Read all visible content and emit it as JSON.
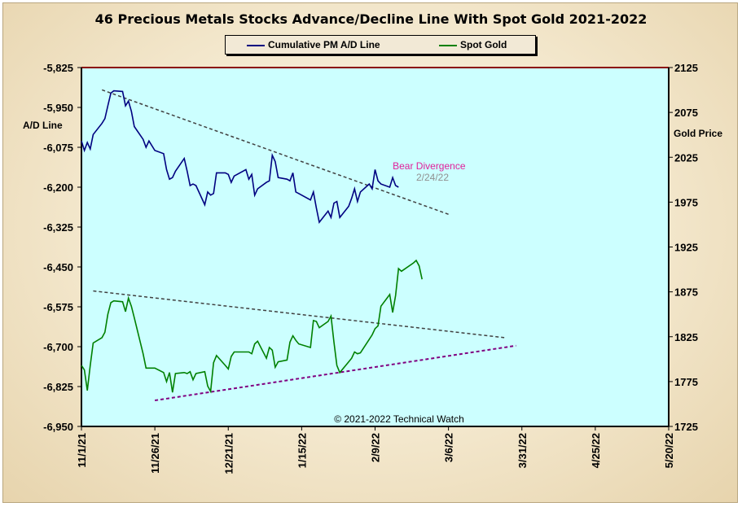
{
  "chart_data": {
    "type": "line",
    "title": "46 Precious Metals Stocks Advance/Decline Line With Spot Gold 2021-2022",
    "ylabel_left": "A/D Line",
    "ylabel_right": "Gold Price",
    "y_left_range": [
      -6950,
      -5825
    ],
    "y_right_range": [
      1725,
      2125
    ],
    "y_left_ticks": [
      "-5,825",
      "-5,950",
      "-6,075",
      "-6,200",
      "-6,325",
      "-6,450",
      "-6,575",
      "-6,700",
      "-6,825",
      "-6,950"
    ],
    "y_right_ticks": [
      "2125",
      "2075",
      "2025",
      "1975",
      "1925",
      "1875",
      "1825",
      "1775",
      "1725"
    ],
    "x_range": [
      "2021-11-01",
      "2022-05-20"
    ],
    "x_ticks": [
      "11/1/21",
      "11/26/21",
      "12/21/21",
      "1/15/22",
      "2/9/22",
      "3/6/22",
      "3/31/22",
      "4/25/22",
      "5/20/22"
    ],
    "legend_position": "top-center",
    "series": [
      {
        "name": "Cumulative PM A/D Line",
        "axis": "left",
        "color": "#000080",
        "points": [
          [
            "2021-11-01",
            -6055
          ],
          [
            "2021-11-02",
            -6085
          ],
          [
            "2021-11-03",
            -6060
          ],
          [
            "2021-11-04",
            -6080
          ],
          [
            "2021-11-05",
            -6035
          ],
          [
            "2021-11-08",
            -6000
          ],
          [
            "2021-11-09",
            -5985
          ],
          [
            "2021-11-10",
            -5945
          ],
          [
            "2021-11-11",
            -5905
          ],
          [
            "2021-11-12",
            -5898
          ],
          [
            "2021-11-15",
            -5900
          ],
          [
            "2021-11-16",
            -5945
          ],
          [
            "2021-11-17",
            -5930
          ],
          [
            "2021-11-18",
            -5962
          ],
          [
            "2021-11-19",
            -6010
          ],
          [
            "2021-11-22",
            -6050
          ],
          [
            "2021-11-23",
            -6075
          ],
          [
            "2021-11-24",
            -6055
          ],
          [
            "2021-11-26",
            -6085
          ],
          [
            "2021-11-29",
            -6095
          ],
          [
            "2021-11-30",
            -6145
          ],
          [
            "2021-12-01",
            -6175
          ],
          [
            "2021-12-02",
            -6170
          ],
          [
            "2021-12-03",
            -6150
          ],
          [
            "2021-12-06",
            -6110
          ],
          [
            "2021-12-07",
            -6150
          ],
          [
            "2021-12-08",
            -6195
          ],
          [
            "2021-12-09",
            -6190
          ],
          [
            "2021-12-10",
            -6195
          ],
          [
            "2021-12-13",
            -6255
          ],
          [
            "2021-12-14",
            -6215
          ],
          [
            "2021-12-15",
            -6225
          ],
          [
            "2021-12-16",
            -6220
          ],
          [
            "2021-12-17",
            -6155
          ],
          [
            "2021-12-20",
            -6155
          ],
          [
            "2021-12-21",
            -6160
          ],
          [
            "2021-12-22",
            -6185
          ],
          [
            "2021-12-23",
            -6165
          ],
          [
            "2021-12-27",
            -6145
          ],
          [
            "2021-12-28",
            -6175
          ],
          [
            "2021-12-29",
            -6160
          ],
          [
            "2021-12-30",
            -6225
          ],
          [
            "2021-12-31",
            -6205
          ],
          [
            "2022-01-03",
            -6185
          ],
          [
            "2022-01-04",
            -6180
          ],
          [
            "2022-01-05",
            -6100
          ],
          [
            "2022-01-06",
            -6120
          ],
          [
            "2022-01-07",
            -6170
          ],
          [
            "2022-01-10",
            -6175
          ],
          [
            "2022-01-11",
            -6180
          ],
          [
            "2022-01-12",
            -6155
          ],
          [
            "2022-01-13",
            -6215
          ],
          [
            "2022-01-14",
            -6220
          ],
          [
            "2022-01-18",
            -6240
          ],
          [
            "2022-01-19",
            -6215
          ],
          [
            "2022-01-20",
            -6265
          ],
          [
            "2022-01-21",
            -6310
          ],
          [
            "2022-01-24",
            -6275
          ],
          [
            "2022-01-25",
            -6295
          ],
          [
            "2022-01-26",
            -6250
          ],
          [
            "2022-01-27",
            -6245
          ],
          [
            "2022-01-28",
            -6295
          ],
          [
            "2022-01-31",
            -6260
          ],
          [
            "2022-02-01",
            -6235
          ],
          [
            "2022-02-02",
            -6205
          ],
          [
            "2022-02-03",
            -6245
          ],
          [
            "2022-02-04",
            -6215
          ],
          [
            "2022-02-07",
            -6190
          ],
          [
            "2022-02-08",
            -6205
          ],
          [
            "2022-02-09",
            -6145
          ],
          [
            "2022-02-10",
            -6180
          ],
          [
            "2022-02-11",
            -6190
          ],
          [
            "2022-02-14",
            -6200
          ],
          [
            "2022-02-15",
            -6170
          ],
          [
            "2022-02-16",
            -6195
          ],
          [
            "2022-02-17",
            -6200
          ]
        ]
      },
      {
        "name": "Spot Gold",
        "axis": "right",
        "color": "#008000",
        "points": [
          [
            "2021-11-01",
            1793
          ],
          [
            "2021-11-02",
            1788
          ],
          [
            "2021-11-03",
            1765
          ],
          [
            "2021-11-04",
            1793
          ],
          [
            "2021-11-05",
            1818
          ],
          [
            "2021-11-08",
            1824
          ],
          [
            "2021-11-09",
            1830
          ],
          [
            "2021-11-10",
            1850
          ],
          [
            "2021-11-11",
            1863
          ],
          [
            "2021-11-12",
            1865
          ],
          [
            "2021-11-15",
            1864
          ],
          [
            "2021-11-16",
            1853
          ],
          [
            "2021-11-17",
            1868
          ],
          [
            "2021-11-18",
            1859
          ],
          [
            "2021-11-19",
            1846
          ],
          [
            "2021-11-22",
            1806
          ],
          [
            "2021-11-23",
            1790
          ],
          [
            "2021-11-24",
            1790
          ],
          [
            "2021-11-26",
            1790
          ],
          [
            "2021-11-29",
            1785
          ],
          [
            "2021-11-30",
            1775
          ],
          [
            "2021-12-01",
            1785
          ],
          [
            "2021-12-02",
            1763
          ],
          [
            "2021-12-03",
            1784
          ],
          [
            "2021-12-06",
            1785
          ],
          [
            "2021-12-07",
            1784
          ],
          [
            "2021-12-08",
            1786
          ],
          [
            "2021-12-09",
            1777
          ],
          [
            "2021-12-10",
            1784
          ],
          [
            "2021-12-13",
            1786
          ],
          [
            "2021-12-14",
            1770
          ],
          [
            "2021-12-15",
            1764
          ],
          [
            "2021-12-16",
            1796
          ],
          [
            "2021-12-17",
            1804
          ],
          [
            "2021-12-20",
            1793
          ],
          [
            "2021-12-21",
            1789
          ],
          [
            "2021-12-22",
            1803
          ],
          [
            "2021-12-23",
            1808
          ],
          [
            "2021-12-27",
            1808
          ],
          [
            "2021-12-28",
            1808
          ],
          [
            "2021-12-29",
            1806
          ],
          [
            "2021-12-30",
            1817
          ],
          [
            "2021-12-31",
            1820
          ],
          [
            "2022-01-03",
            1801
          ],
          [
            "2022-01-04",
            1813
          ],
          [
            "2022-01-05",
            1810
          ],
          [
            "2022-01-06",
            1791
          ],
          [
            "2022-01-07",
            1797
          ],
          [
            "2022-01-10",
            1799
          ],
          [
            "2022-01-11",
            1819
          ],
          [
            "2022-01-12",
            1826
          ],
          [
            "2022-01-13",
            1821
          ],
          [
            "2022-01-14",
            1817
          ],
          [
            "2022-01-18",
            1813
          ],
          [
            "2022-01-19",
            1843
          ],
          [
            "2022-01-20",
            1842
          ],
          [
            "2022-01-21",
            1835
          ],
          [
            "2022-01-24",
            1842
          ],
          [
            "2022-01-25",
            1848
          ],
          [
            "2022-01-26",
            1819
          ],
          [
            "2022-01-27",
            1793
          ],
          [
            "2022-01-28",
            1785
          ],
          [
            "2022-01-31",
            1797
          ],
          [
            "2022-02-01",
            1801
          ],
          [
            "2022-02-02",
            1808
          ],
          [
            "2022-02-03",
            1806
          ],
          [
            "2022-02-04",
            1807
          ],
          [
            "2022-02-07",
            1822
          ],
          [
            "2022-02-08",
            1827
          ],
          [
            "2022-02-09",
            1834
          ],
          [
            "2022-02-10",
            1837
          ],
          [
            "2022-02-11",
            1859
          ],
          [
            "2022-02-14",
            1872
          ],
          [
            "2022-02-15",
            1852
          ],
          [
            "2022-02-16",
            1871
          ],
          [
            "2022-02-17",
            1901
          ],
          [
            "2022-02-18",
            1898
          ],
          [
            "2022-02-22",
            1907
          ],
          [
            "2022-02-23",
            1910
          ],
          [
            "2022-02-24",
            1904
          ],
          [
            "2022-02-25",
            1889
          ]
        ]
      }
    ],
    "trendlines": [
      {
        "axis": "left",
        "color": "#404040",
        "style": "dashed",
        "from": [
          "2021-11-08",
          -5895
        ],
        "to": [
          "2022-03-06",
          -6285
        ]
      },
      {
        "axis": "right",
        "color": "#404040",
        "style": "dashed",
        "from": [
          "2021-11-05",
          1876
        ],
        "to": [
          "2022-03-25",
          1824
        ]
      },
      {
        "axis": "right",
        "color": "#800080",
        "style": "dashed",
        "from": [
          "2021-11-26",
          1754
        ],
        "to": [
          "2022-03-29",
          1815
        ]
      }
    ],
    "annotations": [
      {
        "text": "Bear Divergence",
        "color": "#e0209a",
        "at": [
          "2022-02-15",
          -6144
        ],
        "axis": "left"
      },
      {
        "text": "2/24/22",
        "color": "#909090",
        "at": [
          "2022-02-23",
          -6180
        ],
        "axis": "left"
      }
    ],
    "copyright": "© 2021-2022 Technical Watch"
  },
  "colors": {
    "plot_bg": "#ccffff",
    "top_border": "#8b0000"
  }
}
